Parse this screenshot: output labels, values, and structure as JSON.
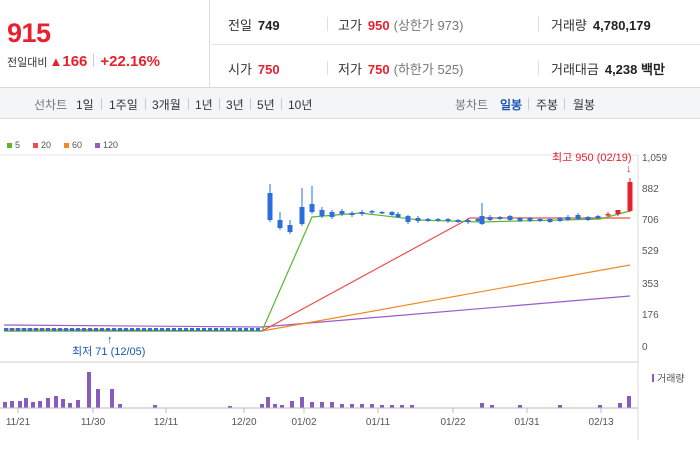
{
  "header": {
    "price": "915",
    "change_label": "전일대비",
    "change_symbol": "▲",
    "change_value": "166",
    "change_pct": "+22.16%",
    "stats": {
      "prev_close": {
        "label": "전일",
        "value": "749"
      },
      "high": {
        "label": "고가",
        "value": "950",
        "sub": "(상한가 973)"
      },
      "volume": {
        "label": "거래량",
        "value": "4,780,179"
      },
      "open": {
        "label": "시가",
        "value": "750"
      },
      "low": {
        "label": "저가",
        "value": "750",
        "sub": "(하한가 525)"
      },
      "amount": {
        "label": "거래대금",
        "value": "4,238 백만"
      }
    }
  },
  "toolbar": {
    "line_label": "선차트",
    "line_periods": [
      "1일",
      "1주일",
      "3개월",
      "1년",
      "3년",
      "5년",
      "10년"
    ],
    "candle_label": "봉차트",
    "candle_periods": [
      {
        "label": "일봉",
        "active": true
      },
      {
        "label": "주봉",
        "active": false
      },
      {
        "label": "월봉",
        "active": false
      }
    ]
  },
  "chart_data": {
    "type": "candlestick",
    "legend": [
      {
        "name": "5",
        "color": "#5cb531"
      },
      {
        "name": "20",
        "color": "#e8514a"
      },
      {
        "name": "60",
        "color": "#f08a24"
      },
      {
        "name": "120",
        "color": "#9a5cc8"
      }
    ],
    "y_ticks": [
      "1,059",
      "882",
      "706",
      "529",
      "353",
      "176",
      "0"
    ],
    "x_ticks": [
      "11/21",
      "11/30",
      "12/11",
      "12/20",
      "01/02",
      "01/11",
      "01/22",
      "01/31",
      "02/13"
    ],
    "high_annotation": "최고 950 (02/19)",
    "low_annotation": "최저 71 (12/05)",
    "volume_legend": "거래량",
    "up_color": "#e8212f",
    "down_color": "#2a6fdb"
  }
}
